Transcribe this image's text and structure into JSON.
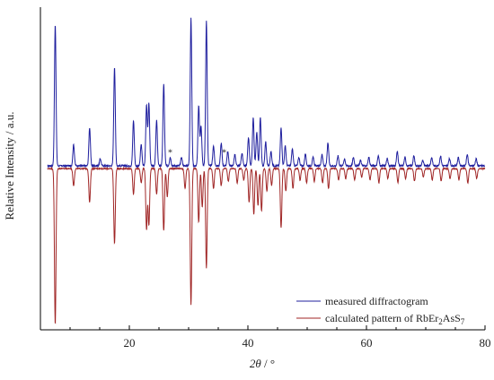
{
  "chart_data": {
    "type": "line",
    "xlabel": "2θ / °",
    "ylabel": "Relative Intensity / a.u.",
    "xlim": [
      5,
      80
    ],
    "ylim": [
      -1.1,
      1.1
    ],
    "xticks": [
      20,
      40,
      60,
      80
    ],
    "grid": false,
    "legend_position": "bottom-right",
    "annotations": [
      "*"
    ],
    "series": [
      {
        "name": "measured diffractogram",
        "color": "#1f1f9e",
        "baseline": 0,
        "peaks": [
          {
            "x": 7.5,
            "y": 1.0
          },
          {
            "x": 10.6,
            "y": 0.15
          },
          {
            "x": 13.3,
            "y": 0.27
          },
          {
            "x": 15.1,
            "y": 0.05
          },
          {
            "x": 17.5,
            "y": 0.7
          },
          {
            "x": 20.7,
            "y": 0.32
          },
          {
            "x": 22.0,
            "y": 0.15
          },
          {
            "x": 22.9,
            "y": 0.43
          },
          {
            "x": 23.3,
            "y": 0.44
          },
          {
            "x": 24.6,
            "y": 0.32
          },
          {
            "x": 25.8,
            "y": 0.58
          },
          {
            "x": 26.9,
            "y": 0.06
          },
          {
            "x": 28.8,
            "y": 0.06
          },
          {
            "x": 30.4,
            "y": 1.04
          },
          {
            "x": 31.7,
            "y": 0.42
          },
          {
            "x": 32.1,
            "y": 0.28
          },
          {
            "x": 33.0,
            "y": 1.02
          },
          {
            "x": 34.2,
            "y": 0.14
          },
          {
            "x": 35.5,
            "y": 0.16
          },
          {
            "x": 36.6,
            "y": 0.1
          },
          {
            "x": 37.8,
            "y": 0.08
          },
          {
            "x": 39.0,
            "y": 0.09
          },
          {
            "x": 40.1,
            "y": 0.2
          },
          {
            "x": 40.9,
            "y": 0.34
          },
          {
            "x": 41.5,
            "y": 0.24
          },
          {
            "x": 42.1,
            "y": 0.34
          },
          {
            "x": 43.0,
            "y": 0.17
          },
          {
            "x": 43.9,
            "y": 0.1
          },
          {
            "x": 45.6,
            "y": 0.27
          },
          {
            "x": 46.3,
            "y": 0.14
          },
          {
            "x": 47.5,
            "y": 0.12
          },
          {
            "x": 48.6,
            "y": 0.06
          },
          {
            "x": 49.7,
            "y": 0.08
          },
          {
            "x": 51.0,
            "y": 0.06
          },
          {
            "x": 52.5,
            "y": 0.08
          },
          {
            "x": 53.5,
            "y": 0.16
          },
          {
            "x": 55.2,
            "y": 0.07
          },
          {
            "x": 56.3,
            "y": 0.05
          },
          {
            "x": 57.8,
            "y": 0.06
          },
          {
            "x": 59.0,
            "y": 0.04
          },
          {
            "x": 60.4,
            "y": 0.06
          },
          {
            "x": 62.0,
            "y": 0.07
          },
          {
            "x": 63.5,
            "y": 0.05
          },
          {
            "x": 65.2,
            "y": 0.1
          },
          {
            "x": 66.5,
            "y": 0.06
          },
          {
            "x": 68.0,
            "y": 0.07
          },
          {
            "x": 69.5,
            "y": 0.04
          },
          {
            "x": 71.0,
            "y": 0.06
          },
          {
            "x": 72.5,
            "y": 0.07
          },
          {
            "x": 74.0,
            "y": 0.05
          },
          {
            "x": 75.5,
            "y": 0.06
          },
          {
            "x": 77.0,
            "y": 0.08
          },
          {
            "x": 78.5,
            "y": 0.05
          }
        ]
      },
      {
        "name": "calculated pattern of RbEr",
        "name_sub": "2",
        "name_cont": "AsS",
        "name_sub2": "7",
        "color": "#a02626",
        "baseline": -0.02,
        "peaks": [
          {
            "x": 7.5,
            "y": -1.1
          },
          {
            "x": 10.6,
            "y": -0.12
          },
          {
            "x": 13.3,
            "y": -0.24
          },
          {
            "x": 17.5,
            "y": -0.53
          },
          {
            "x": 20.7,
            "y": -0.18
          },
          {
            "x": 22.0,
            "y": -0.1
          },
          {
            "x": 22.9,
            "y": -0.43
          },
          {
            "x": 23.3,
            "y": -0.4
          },
          {
            "x": 24.6,
            "y": -0.18
          },
          {
            "x": 25.8,
            "y": -0.44
          },
          {
            "x": 26.4,
            "y": -0.2
          },
          {
            "x": 29.4,
            "y": -0.14
          },
          {
            "x": 30.4,
            "y": -0.96
          },
          {
            "x": 31.7,
            "y": -0.38
          },
          {
            "x": 32.3,
            "y": -0.27
          },
          {
            "x": 33.0,
            "y": -0.7
          },
          {
            "x": 34.2,
            "y": -0.14
          },
          {
            "x": 35.5,
            "y": -0.12
          },
          {
            "x": 36.7,
            "y": -0.09
          },
          {
            "x": 38.2,
            "y": -0.1
          },
          {
            "x": 39.3,
            "y": -0.08
          },
          {
            "x": 40.2,
            "y": -0.24
          },
          {
            "x": 41.0,
            "y": -0.32
          },
          {
            "x": 41.7,
            "y": -0.26
          },
          {
            "x": 42.3,
            "y": -0.3
          },
          {
            "x": 43.2,
            "y": -0.16
          },
          {
            "x": 44.0,
            "y": -0.12
          },
          {
            "x": 45.6,
            "y": -0.42
          },
          {
            "x": 46.4,
            "y": -0.16
          },
          {
            "x": 47.6,
            "y": -0.14
          },
          {
            "x": 48.8,
            "y": -0.08
          },
          {
            "x": 49.9,
            "y": -0.1
          },
          {
            "x": 51.2,
            "y": -0.09
          },
          {
            "x": 52.6,
            "y": -0.1
          },
          {
            "x": 53.6,
            "y": -0.14
          },
          {
            "x": 55.3,
            "y": -0.08
          },
          {
            "x": 56.5,
            "y": -0.07
          },
          {
            "x": 58.0,
            "y": -0.08
          },
          {
            "x": 59.2,
            "y": -0.06
          },
          {
            "x": 60.6,
            "y": -0.08
          },
          {
            "x": 62.1,
            "y": -0.1
          },
          {
            "x": 63.6,
            "y": -0.07
          },
          {
            "x": 65.3,
            "y": -0.1
          },
          {
            "x": 66.6,
            "y": -0.07
          },
          {
            "x": 68.1,
            "y": -0.09
          },
          {
            "x": 69.6,
            "y": -0.06
          },
          {
            "x": 71.1,
            "y": -0.08
          },
          {
            "x": 72.6,
            "y": -0.09
          },
          {
            "x": 74.1,
            "y": -0.07
          },
          {
            "x": 75.6,
            "y": -0.08
          },
          {
            "x": 77.1,
            "y": -0.1
          },
          {
            "x": 78.6,
            "y": -0.07
          }
        ]
      }
    ]
  }
}
